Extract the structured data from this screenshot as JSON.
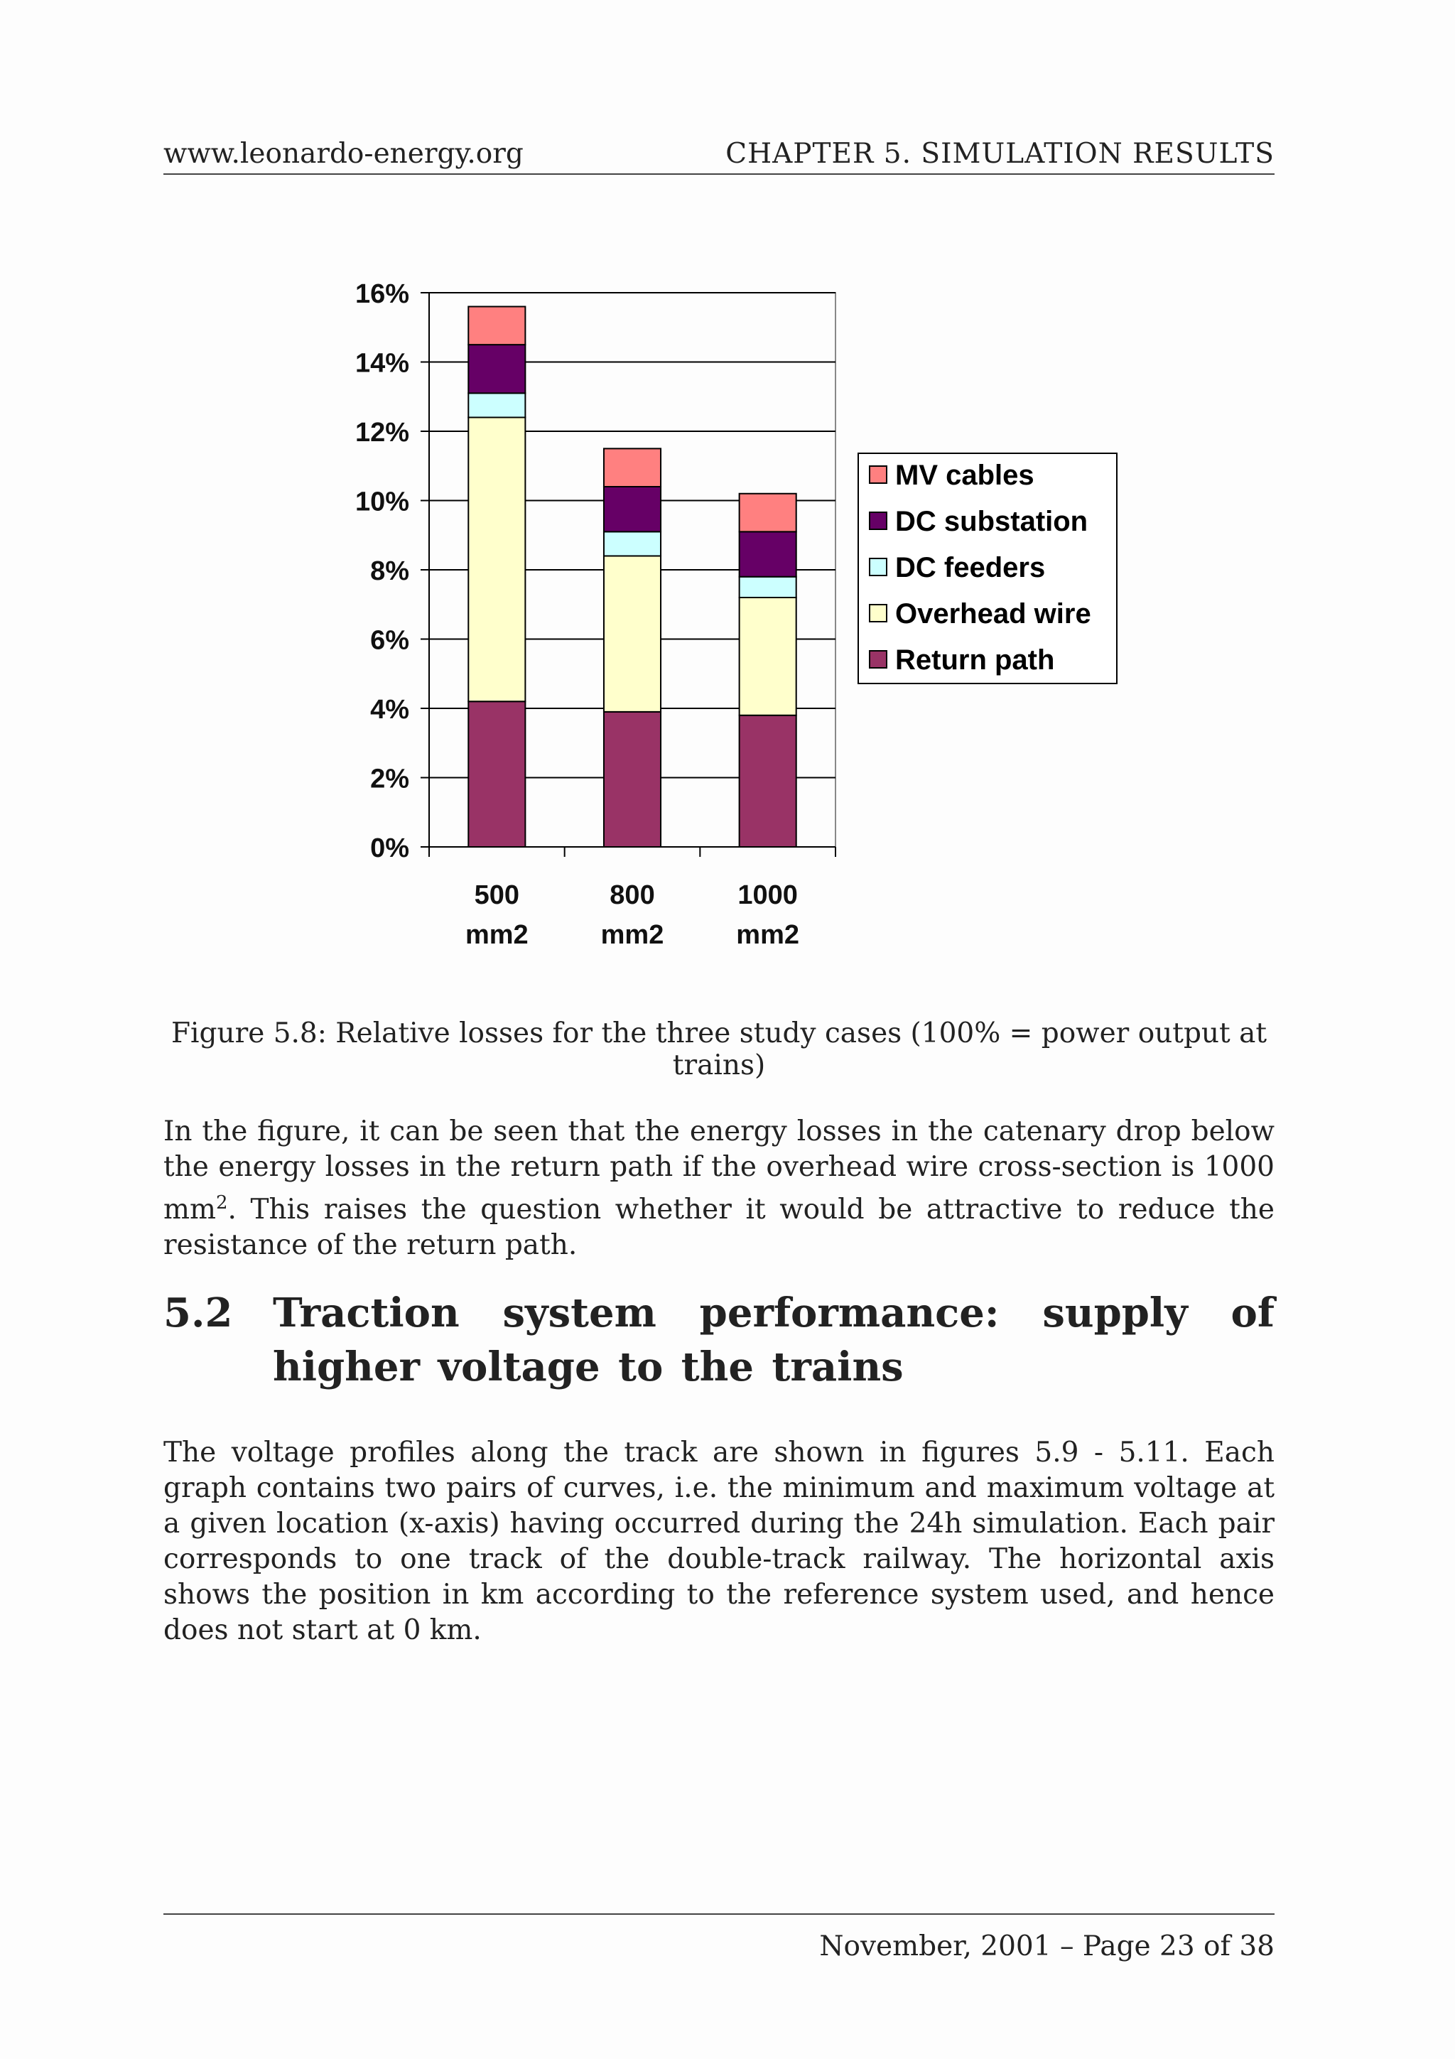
{
  "header": {
    "left": "www.leonardo-energy.org",
    "right": "CHAPTER 5.  SIMULATION RESULTS"
  },
  "chart_data": {
    "type": "bar",
    "stacked": true,
    "categories": [
      "500 mm2",
      "800 mm2",
      "1000 mm2"
    ],
    "category_lines": [
      [
        "500",
        "mm2"
      ],
      [
        "800",
        "mm2"
      ],
      [
        "1000",
        "mm2"
      ]
    ],
    "series": [
      {
        "name": "Return path",
        "values": [
          4.2,
          3.9,
          3.8
        ],
        "color": "#993366"
      },
      {
        "name": "Overhead wire",
        "values": [
          8.2,
          4.5,
          3.4
        ],
        "color": "#ffffcc"
      },
      {
        "name": "DC feeders",
        "values": [
          0.7,
          0.7,
          0.6
        ],
        "color": "#ccffff"
      },
      {
        "name": "DC substation",
        "values": [
          1.4,
          1.3,
          1.3
        ],
        "color": "#660066"
      },
      {
        "name": "MV cables",
        "values": [
          1.1,
          1.1,
          1.1
        ],
        "color": "#ff8080"
      }
    ],
    "legend_order": [
      "MV cables",
      "DC substation",
      "DC feeders",
      "Overhead wire",
      "Return path"
    ],
    "yticks": [
      "0%",
      "2%",
      "4%",
      "6%",
      "8%",
      "10%",
      "12%",
      "14%",
      "16%"
    ],
    "ylim": [
      0,
      16
    ],
    "grid": true,
    "legend_position": "right"
  },
  "caption": "Figure 5.8: Relative losses for the three study cases (100% = power output at trains)",
  "para1": {
    "before": "In the figure, it can be seen that the energy losses in the catenary drop below the energy losses in the return path if the overhead wire cross-section is 1000 mm",
    "sup": "2",
    "after": ". This raises the question whether it would be attractive to reduce the resistance of the return path."
  },
  "section": {
    "number": "5.2",
    "title": "Traction system performance: supply of higher voltage to the trains"
  },
  "para2": "The voltage profiles along the track are shown in figures 5.9 - 5.11. Each graph contains two pairs of curves, i.e. the minimum and maximum voltage at a given location (x-axis) having occurred during the 24h simulation. Each pair corresponds to one track of the double-track railway. The horizontal axis shows the position in km according to the reference system used, and hence does not start at 0 km.",
  "footer": "November, 2001 – Page 23 of 38"
}
